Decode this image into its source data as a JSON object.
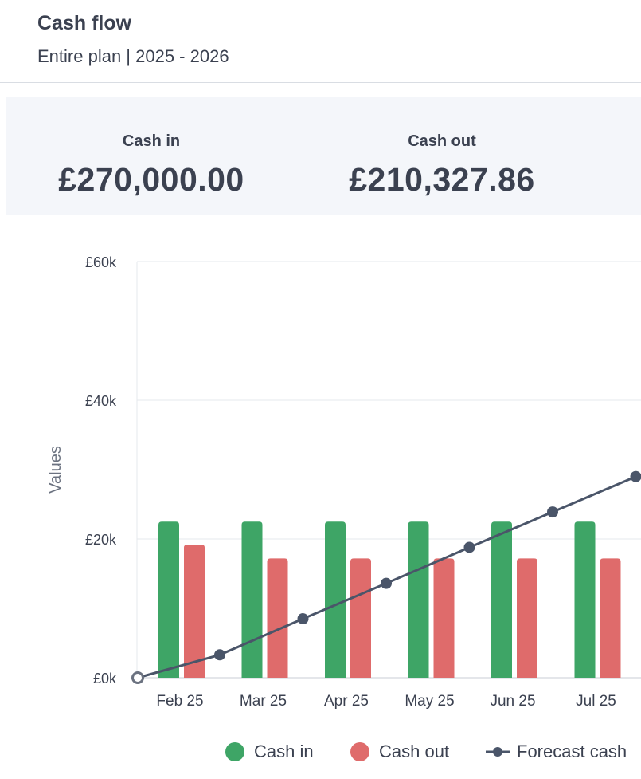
{
  "header": {
    "title": "Cash flow",
    "subtitle": "Entire plan | 2025 - 2026"
  },
  "summary": {
    "cash_in_label": "Cash in",
    "cash_in_value": "£270,000.00",
    "cash_out_label": "Cash out",
    "cash_out_value": "£210,327.86"
  },
  "colors": {
    "cash_in": "#3ea566",
    "cash_out": "#df6b6b",
    "forecast": "#4a5569",
    "grid": "#e6e8ec",
    "text": "#3b4150"
  },
  "chart_data": {
    "type": "bar",
    "categories": [
      "Feb 25",
      "Mar 25",
      "Apr 25",
      "May 25",
      "Jun 25",
      "Jul 25"
    ],
    "ylabel": "Values",
    "xlabel": "",
    "ylim": [
      0,
      60000
    ],
    "yticks": [
      0,
      20000,
      40000,
      60000
    ],
    "ytick_labels": [
      "£0k",
      "£20k",
      "£40k",
      "£60k"
    ],
    "grid": true,
    "legend_position": "bottom",
    "series": [
      {
        "name": "Cash in",
        "type": "bar",
        "color": "#3ea566",
        "values": [
          22500,
          22500,
          22500,
          22500,
          22500,
          22500
        ]
      },
      {
        "name": "Cash out",
        "type": "bar",
        "color": "#df6b6b",
        "values": [
          19200,
          17200,
          17200,
          17200,
          17200,
          17200
        ]
      },
      {
        "name": "Forecast cash",
        "type": "line",
        "color": "#4a5569",
        "start_value": 0,
        "values": [
          3300,
          8500,
          13600,
          18800,
          23900,
          29000
        ]
      }
    ]
  },
  "legend": {
    "cash_in": "Cash in",
    "cash_out": "Cash out",
    "forecast": "Forecast cash"
  }
}
